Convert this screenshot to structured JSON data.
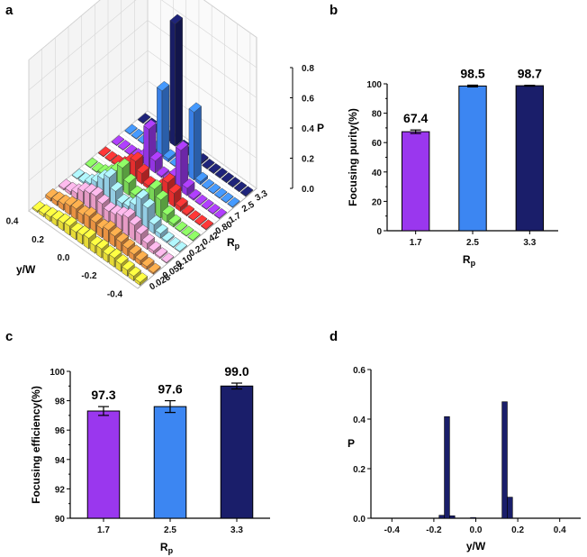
{
  "chart_data": [
    {
      "id": "a",
      "panel_label": "a",
      "type": "bar3d",
      "title": "",
      "zlabel": "P",
      "zlim": [
        0,
        0.8
      ],
      "ztick_labels": [
        "0.0",
        "0.2",
        "0.4",
        "0.6",
        "0.8"
      ],
      "ylabel": "y/W",
      "yticks": [
        "0.4",
        "0.2",
        "0.0",
        "-0.2",
        "-0.4"
      ],
      "rlabel": "R",
      "rlabel_sub": "p",
      "rows": [
        {
          "Rp": "0.026",
          "color": "#f2e53a",
          "values": [
            0.01,
            0.02,
            0.03,
            0.04,
            0.05,
            0.06,
            0.05,
            0.06,
            0.07,
            0.05,
            0.06,
            0.05,
            0.06,
            0.05,
            0.04,
            0.03,
            0.02
          ]
        },
        {
          "Rp": "0.052",
          "color": "#f59a45",
          "values": [
            0.02,
            0.03,
            0.04,
            0.06,
            0.07,
            0.06,
            0.08,
            0.07,
            0.06,
            0.08,
            0.07,
            0.06,
            0.05,
            0.04,
            0.03,
            0.02,
            0.01
          ]
        },
        {
          "Rp": "0.10",
          "color": "#f2a3cf",
          "values": [
            0.01,
            0.02,
            0.04,
            0.08,
            0.1,
            0.11,
            0.09,
            0.07,
            0.08,
            0.1,
            0.12,
            0.1,
            0.07,
            0.04,
            0.02,
            0.01,
            0.0
          ]
        },
        {
          "Rp": "0.21",
          "color": "#9bd8f0",
          "values": [
            0.0,
            0.01,
            0.03,
            0.07,
            0.12,
            0.16,
            0.1,
            0.05,
            0.06,
            0.1,
            0.17,
            0.14,
            0.06,
            0.03,
            0.01,
            0.0,
            0.0
          ]
        },
        {
          "Rp": "0.42",
          "color": "#7ee05a",
          "values": [
            0.0,
            0.0,
            0.02,
            0.05,
            0.1,
            0.15,
            0.08,
            0.03,
            0.04,
            0.09,
            0.16,
            0.12,
            0.05,
            0.02,
            0.0,
            0.0,
            0.0
          ]
        },
        {
          "Rp": "0.80",
          "color": "#f03030",
          "values": [
            0.0,
            0.0,
            0.01,
            0.03,
            0.08,
            0.12,
            0.07,
            0.02,
            0.02,
            0.07,
            0.13,
            0.09,
            0.03,
            0.01,
            0.0,
            0.0,
            0.0
          ]
        },
        {
          "Rp": "1.7",
          "color": "#9a37ee",
          "values": [
            0.0,
            0.0,
            0.0,
            0.01,
            0.04,
            0.26,
            0.08,
            0.01,
            0.01,
            0.07,
            0.27,
            0.05,
            0.01,
            0.0,
            0.0,
            0.0,
            0.0
          ]
        },
        {
          "Rp": "2.5",
          "color": "#3c86f2",
          "values": [
            0.0,
            0.0,
            0.0,
            0.0,
            0.02,
            0.44,
            0.02,
            0.0,
            0.0,
            0.02,
            0.45,
            0.02,
            0.0,
            0.0,
            0.0,
            0.0,
            0.0
          ]
        },
        {
          "Rp": "3.3",
          "color": "#1a1e6a",
          "values": [
            0.0,
            0.0,
            0.0,
            0.0,
            0.01,
            0.81,
            0.01,
            0.0,
            0.0,
            0.01,
            0.0,
            0.0,
            0.0,
            0.0,
            0.0,
            0.0,
            0.0
          ]
        }
      ]
    },
    {
      "id": "b",
      "panel_label": "b",
      "type": "bar",
      "title": "",
      "xlabel": "R",
      "xlabel_sub": "p",
      "ylabel": "Focusing purity(%)",
      "ylim": [
        0,
        100
      ],
      "ytick_labels": [
        "0",
        "20",
        "40",
        "60",
        "80",
        "100"
      ],
      "categories": [
        "1.7",
        "2.5",
        "3.3"
      ],
      "values": [
        67.4,
        98.5,
        98.7
      ],
      "errors": [
        1.2,
        0.6,
        0.3
      ],
      "value_labels": [
        "67.4",
        "98.5",
        "98.7"
      ],
      "colors": [
        "#9a37ee",
        "#3c86f2",
        "#1a1e6a"
      ]
    },
    {
      "id": "c",
      "panel_label": "c",
      "type": "bar",
      "title": "",
      "xlabel": "R",
      "xlabel_sub": "p",
      "ylabel": "Focusing efficiency(%)",
      "ylim": [
        90,
        100
      ],
      "ytick_labels": [
        "90",
        "92",
        "94",
        "96",
        "98",
        "100"
      ],
      "categories": [
        "1.7",
        "2.5",
        "3.3"
      ],
      "values": [
        97.3,
        97.6,
        99.0
      ],
      "errors": [
        0.3,
        0.4,
        0.2
      ],
      "value_labels": [
        "97.3",
        "97.6",
        "99.0"
      ],
      "colors": [
        "#9a37ee",
        "#3c86f2",
        "#1a1e6a"
      ]
    },
    {
      "id": "d",
      "panel_label": "d",
      "type": "bar",
      "title": "",
      "xlabel": "y/W",
      "ylabel": "P",
      "xlim": [
        -0.5,
        0.5
      ],
      "ylim": [
        0,
        0.6
      ],
      "xtick_labels": [
        "-0.4",
        "-0.2",
        "0.0",
        "0.2",
        "0.4"
      ],
      "ytick_labels": [
        "0.0",
        "0.2",
        "0.4",
        "0.6"
      ],
      "bin_width": 0.025,
      "x": [
        -0.1625,
        -0.1375,
        -0.1125,
        -0.0125,
        0.1375,
        0.1625
      ],
      "values": [
        0.012,
        0.41,
        0.01,
        0.003,
        0.47,
        0.085
      ],
      "color": "#1a1e6a"
    }
  ]
}
